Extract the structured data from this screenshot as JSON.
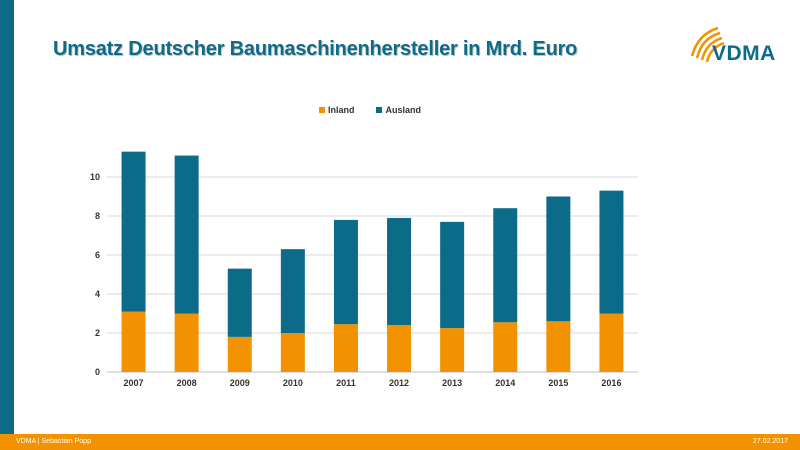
{
  "slide": {
    "title": "Umsatz Deutscher Baumaschinenhersteller in Mrd. Euro",
    "logo_text": "VDMA"
  },
  "footer": {
    "left": "VDMA | Sebastian Popp",
    "right": "27.02.2017"
  },
  "colors": {
    "inland": "#f39200",
    "ausland": "#0d6b8a",
    "brand": "#0d6b8a",
    "grid": "#d9d9d9"
  },
  "chart_data": {
    "type": "bar",
    "stacked": true,
    "title": "",
    "xlabel": "",
    "ylabel": "",
    "categories": [
      "2007",
      "2008",
      "2009",
      "2010",
      "2011",
      "2012",
      "2013",
      "2014",
      "2015",
      "2016"
    ],
    "series": [
      {
        "name": "Inland",
        "values": [
          3.1,
          3.0,
          1.8,
          2.0,
          2.45,
          2.4,
          2.25,
          2.55,
          2.6,
          3.0
        ]
      },
      {
        "name": "Ausland",
        "values": [
          8.2,
          8.1,
          3.5,
          4.3,
          5.35,
          5.5,
          5.45,
          5.85,
          6.4,
          6.3
        ]
      }
    ],
    "yticks": [
      0,
      2,
      4,
      6,
      8,
      10
    ],
    "ylim": [
      0,
      12
    ],
    "grid": true,
    "legend_position": "top-center"
  }
}
